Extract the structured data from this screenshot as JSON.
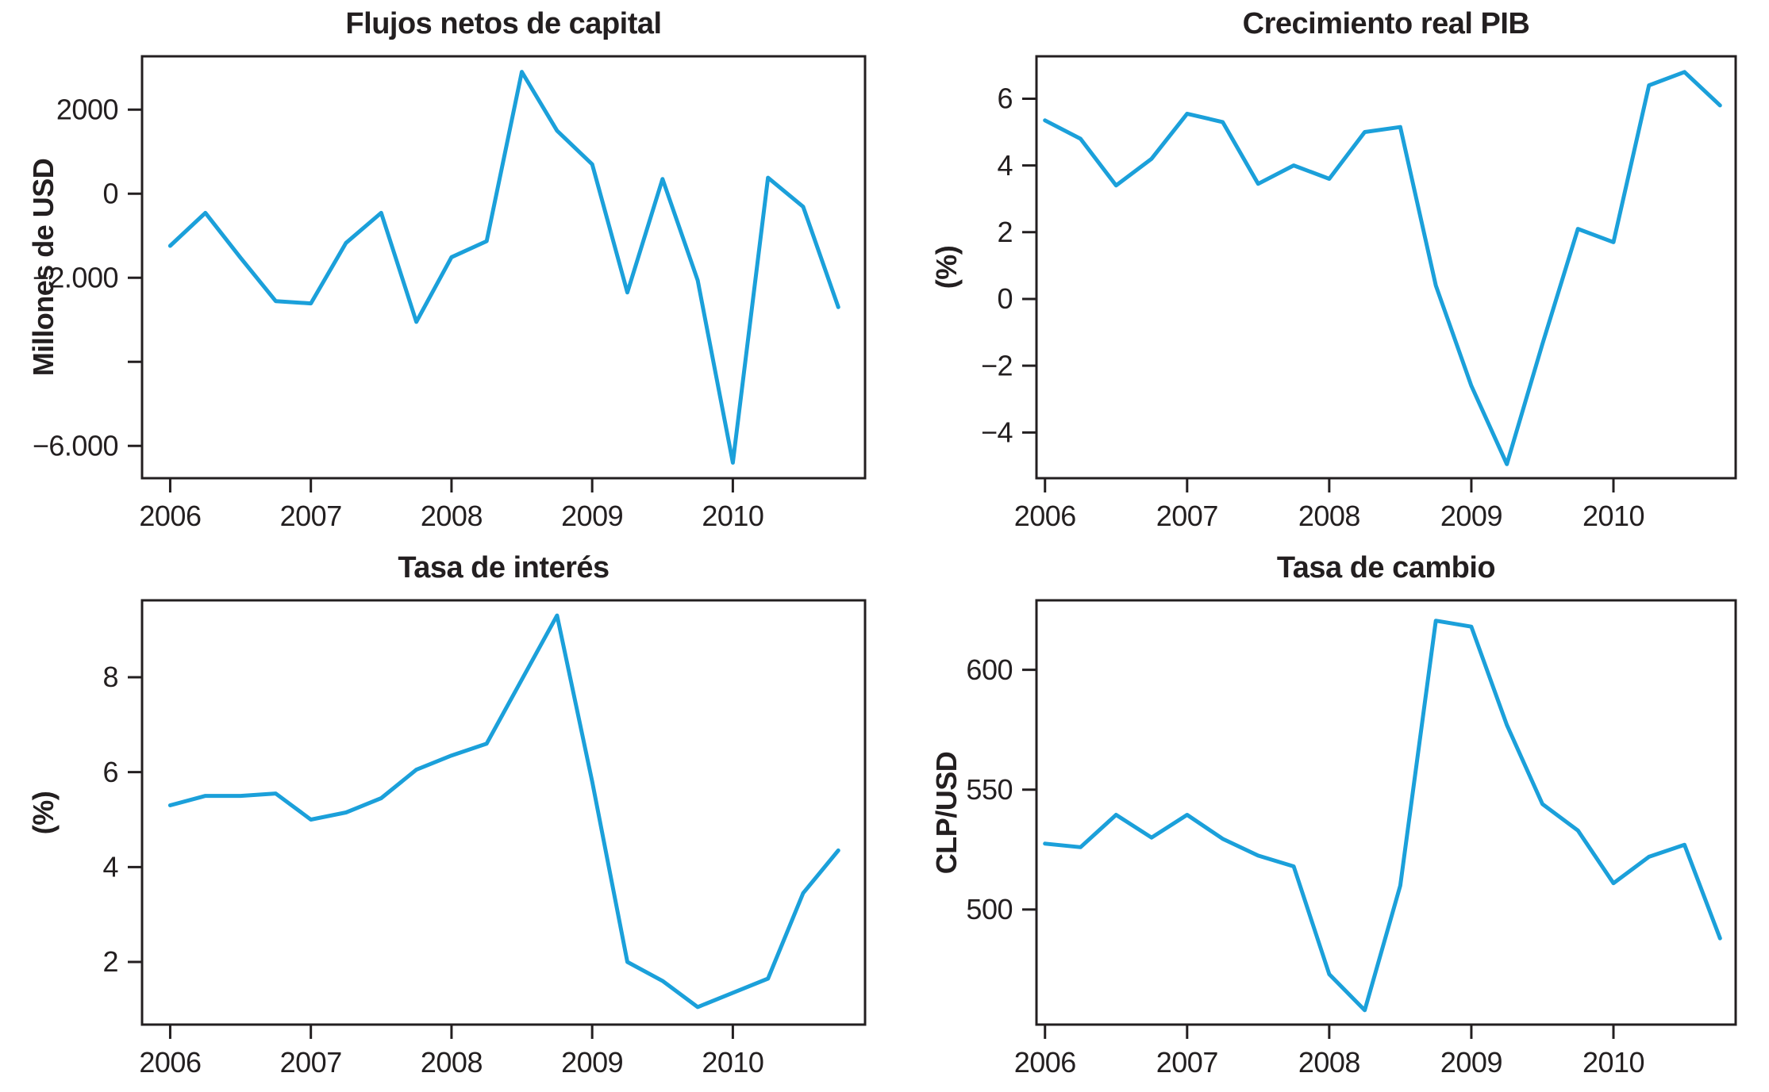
{
  "figure": {
    "background": "#ffffff",
    "line_color": "#1BA0DA",
    "axis_color": "#231f20",
    "text_color": "#231f20"
  },
  "chart_data": [
    {
      "id": "flujos-netos-de-capital",
      "type": "line",
      "title": "Flujos netos de capital",
      "xlabel": "",
      "ylabel": "Millones de USD",
      "legend": "none",
      "grid": false,
      "x": [
        2006.0,
        2006.25,
        2006.5,
        2006.75,
        2007.0,
        2007.25,
        2007.5,
        2007.75,
        2008.0,
        2008.25,
        2008.5,
        2008.75,
        2009.0,
        2009.25,
        2009.5,
        2009.75,
        2010.0,
        2010.25,
        2010.5,
        2010.75
      ],
      "values": [
        -1240,
        -455,
        -1525,
        -2555,
        -2610,
        -1170,
        -455,
        -3050,
        -1510,
        -1130,
        2900,
        1500,
        700,
        -2350,
        350,
        -2060,
        -6400,
        380,
        -310,
        -2700
      ],
      "yticks": [
        {
          "value": 2000,
          "label": "2000"
        },
        {
          "value": 0,
          "label": "0"
        },
        {
          "value": -2000,
          "label": "−2.000"
        },
        {
          "value": -4000,
          "label": ""
        },
        {
          "value": -6000,
          "label": "−6.000"
        }
      ],
      "xticks": [
        {
          "value": 2006,
          "label": "2006"
        },
        {
          "value": 2007,
          "label": "2007"
        },
        {
          "value": 2008,
          "label": "2008"
        },
        {
          "value": 2009,
          "label": "2009"
        },
        {
          "value": 2010,
          "label": "2010"
        }
      ],
      "xlim": [
        2005.8,
        2010.94
      ],
      "ylim": [
        -6770,
        3270
      ]
    },
    {
      "id": "crecimiento-real-pib",
      "type": "line",
      "title": "Crecimiento real PIB",
      "xlabel": "",
      "ylabel": "(%)",
      "legend": "none",
      "grid": false,
      "x": [
        2006.0,
        2006.25,
        2006.5,
        2006.75,
        2007.0,
        2007.25,
        2007.5,
        2007.75,
        2008.0,
        2008.25,
        2008.5,
        2008.75,
        2009.0,
        2009.25,
        2009.5,
        2009.75,
        2010.0,
        2010.25,
        2010.5,
        2010.75
      ],
      "values": [
        5.35,
        4.8,
        3.4,
        4.2,
        5.55,
        5.3,
        3.45,
        4.0,
        3.6,
        5.0,
        5.15,
        0.4,
        -2.6,
        -4.95,
        -1.35,
        2.1,
        1.7,
        6.4,
        6.8,
        5.8
      ],
      "yticks": [
        {
          "value": 6,
          "label": "6"
        },
        {
          "value": 4,
          "label": "4"
        },
        {
          "value": 2,
          "label": "2"
        },
        {
          "value": 0,
          "label": "0"
        },
        {
          "value": -2,
          "label": "−2"
        },
        {
          "value": -4,
          "label": "−4"
        }
      ],
      "xticks": [
        {
          "value": 2006,
          "label": "2006"
        },
        {
          "value": 2007,
          "label": "2007"
        },
        {
          "value": 2008,
          "label": "2008"
        },
        {
          "value": 2009,
          "label": "2009"
        },
        {
          "value": 2010,
          "label": "2010"
        }
      ],
      "xlim": [
        2005.94,
        2010.86
      ],
      "ylim": [
        -5.37,
        7.27
      ]
    },
    {
      "id": "tasa-de-interes",
      "type": "line",
      "title": "Tasa de interés",
      "xlabel": "",
      "ylabel": "(%)",
      "legend": "none",
      "grid": false,
      "x": [
        2006.0,
        2006.25,
        2006.5,
        2006.75,
        2007.0,
        2007.25,
        2007.5,
        2007.75,
        2008.0,
        2008.25,
        2008.5,
        2008.75,
        2009.0,
        2009.25,
        2009.5,
        2009.75,
        2010.0,
        2010.25,
        2010.5,
        2010.75
      ],
      "values": [
        5.3,
        5.5,
        5.5,
        5.55,
        5.0,
        5.15,
        5.45,
        6.05,
        6.35,
        6.6,
        7.95,
        9.3,
        5.8,
        2.0,
        1.6,
        1.05,
        1.35,
        1.65,
        3.45,
        4.35
      ],
      "yticks": [
        {
          "value": 8,
          "label": "8"
        },
        {
          "value": 6,
          "label": "6"
        },
        {
          "value": 4,
          "label": "4"
        },
        {
          "value": 2,
          "label": "2"
        }
      ],
      "xticks": [
        {
          "value": 2006,
          "label": "2006"
        },
        {
          "value": 2007,
          "label": "2007"
        },
        {
          "value": 2008,
          "label": "2008"
        },
        {
          "value": 2009,
          "label": "2009"
        },
        {
          "value": 2010,
          "label": "2010"
        }
      ],
      "xlim": [
        2005.8,
        2010.94
      ],
      "ylim": [
        0.68,
        9.62
      ]
    },
    {
      "id": "tasa-de-cambio",
      "type": "line",
      "title": "Tasa de cambio",
      "xlabel": "",
      "ylabel": "CLP/USD",
      "legend": "none",
      "grid": false,
      "x": [
        2006.0,
        2006.25,
        2006.5,
        2006.75,
        2007.0,
        2007.25,
        2007.5,
        2007.75,
        2008.0,
        2008.25,
        2008.5,
        2008.75,
        2009.0,
        2009.25,
        2009.5,
        2009.75,
        2010.0,
        2010.25,
        2010.5,
        2010.75
      ],
      "values": [
        527.5,
        526,
        539.5,
        530,
        539.5,
        529.5,
        522.5,
        518,
        473,
        458,
        510,
        620.5,
        618,
        577,
        544,
        533,
        511,
        522,
        527,
        488
      ],
      "yticks": [
        {
          "value": 600,
          "label": "600"
        },
        {
          "value": 550,
          "label": "550"
        },
        {
          "value": 500,
          "label": "500"
        }
      ],
      "xticks": [
        {
          "value": 2006,
          "label": "2006"
        },
        {
          "value": 2007,
          "label": "2007"
        },
        {
          "value": 2008,
          "label": "2008"
        },
        {
          "value": 2009,
          "label": "2009"
        },
        {
          "value": 2010,
          "label": "2010"
        }
      ],
      "xlim": [
        2005.94,
        2010.86
      ],
      "ylim": [
        452,
        629
      ]
    }
  ]
}
